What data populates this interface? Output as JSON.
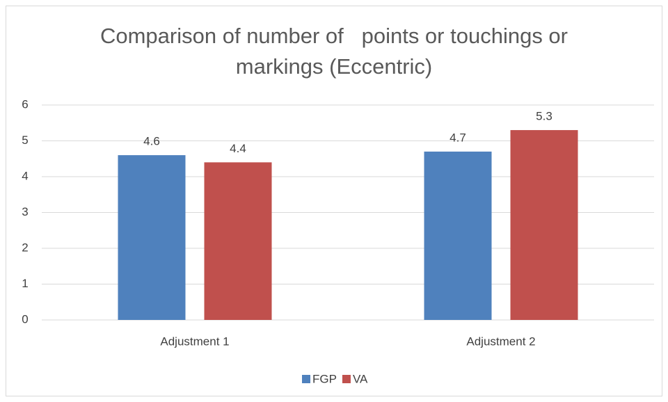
{
  "chart_data": {
    "type": "bar",
    "title": "Comparison of number of   points or touchings or markings (Eccentric)",
    "categories": [
      "Adjustment 1",
      "Adjustment 2"
    ],
    "series": [
      {
        "name": "FGP",
        "color": "#4f81bd",
        "values": [
          4.6,
          4.7
        ]
      },
      {
        "name": "VA",
        "color": "#c0504d",
        "values": [
          4.4,
          5.3
        ]
      }
    ],
    "ylim": [
      0,
      6
    ],
    "yticks": [
      0,
      1,
      2,
      3,
      4,
      5,
      6
    ],
    "grid": true,
    "legend": "bottom"
  }
}
